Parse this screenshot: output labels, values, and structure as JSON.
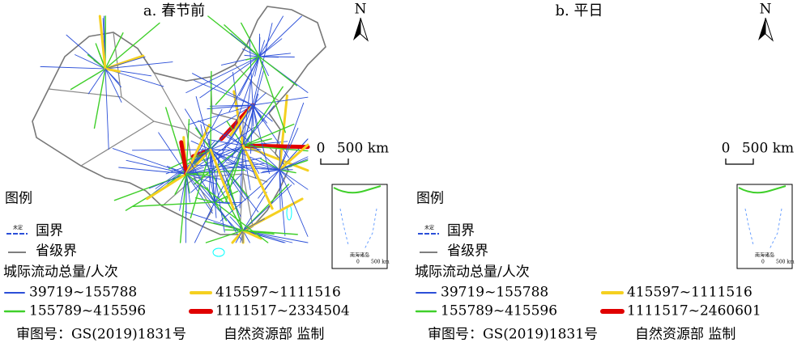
{
  "panels": [
    {
      "title": "a. 春节前",
      "north": "N",
      "scale": {
        "zero": "0",
        "km": "500 km"
      },
      "inset": {
        "label": "南海诸岛",
        "zero": "0",
        "km": "500 km"
      },
      "legend": {
        "title": "图例",
        "undetermined": "未定",
        "national_border": "国界",
        "provincial_border": "省级界",
        "flow_title": "城际流动总量/人次",
        "classes": [
          {
            "label": "39719~155788",
            "color": "#2b4fd8"
          },
          {
            "label": "155789~415596",
            "color": "#3fcf2a"
          },
          {
            "label": "415597~1111516",
            "color": "#f5d020"
          },
          {
            "label": "1111517~2334504",
            "color": "#e00000"
          }
        ]
      },
      "footer": {
        "review_no": "审图号：GS(2019)1831号",
        "supervisor": "自然资源部 监制"
      }
    },
    {
      "title": "b. 平日",
      "north": "N",
      "scale": {
        "zero": "0",
        "km": "500 km"
      },
      "inset": {
        "label": "南海诸岛",
        "zero": "0",
        "km": "500 km"
      },
      "legend": {
        "title": "图例",
        "undetermined": "未定",
        "national_border": "国界",
        "provincial_border": "省级界",
        "flow_title": "城际流动总量/人次",
        "classes": [
          {
            "label": "39719~155788",
            "color": "#2b4fd8"
          },
          {
            "label": "155789~415596",
            "color": "#3fcf2a"
          },
          {
            "label": "415597~1111516",
            "color": "#f5d020"
          },
          {
            "label": "1111517~2460601",
            "color": "#e00000"
          }
        ]
      },
      "footer": {
        "review_no": "审图号：GS(2019)1831号",
        "supervisor": "自然资源部 监制"
      }
    }
  ]
}
